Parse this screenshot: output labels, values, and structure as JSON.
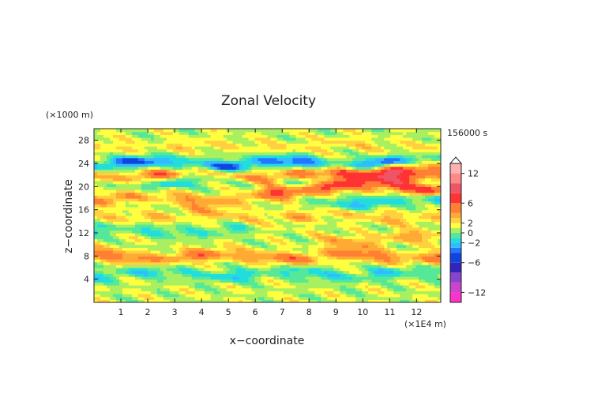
{
  "chart_data": {
    "type": "heatmap",
    "title": "Zonal Velocity",
    "xlabel": "x−coordinate",
    "ylabel": "z−coordinate",
    "x_unit": "(×1E4 m)",
    "y_unit": "(×1000 m)",
    "time_label": "156000 s",
    "xlim": [
      0,
      12.9
    ],
    "ylim": [
      0,
      30
    ],
    "x_ticks": [
      "1",
      "2",
      "3",
      "4",
      "5",
      "6",
      "7",
      "8",
      "9",
      "10",
      "11",
      "12"
    ],
    "y_ticks": [
      "4",
      "8",
      "12",
      "16",
      "20",
      "24",
      "28"
    ],
    "colorbar": {
      "tick_labels": [
        "12",
        "6",
        "2",
        "0",
        "−2",
        "−6",
        "−12"
      ],
      "tick_values": [
        12,
        6,
        2,
        0,
        -2,
        -6,
        -12
      ],
      "max": 14,
      "min": -14,
      "extend": "max"
    },
    "color_levels": [
      {
        "range": [
          -14,
          -12
        ],
        "color": "#ff33cc"
      },
      {
        "range": [
          -12,
          -10
        ],
        "color": "#cc44cc"
      },
      {
        "range": [
          -10,
          -8
        ],
        "color": "#8844cc"
      },
      {
        "range": [
          -8,
          -6
        ],
        "color": "#3322bb"
      },
      {
        "range": [
          -6,
          -4
        ],
        "color": "#1144dd"
      },
      {
        "range": [
          -4,
          -3
        ],
        "color": "#2277ff"
      },
      {
        "range": [
          -3,
          -2
        ],
        "color": "#33bbff"
      },
      {
        "range": [
          -2,
          -1
        ],
        "color": "#22dddd"
      },
      {
        "range": [
          -1,
          0
        ],
        "color": "#55e899"
      },
      {
        "range": [
          0,
          1
        ],
        "color": "#a8f060"
      },
      {
        "range": [
          1,
          2
        ],
        "color": "#ffff40"
      },
      {
        "range": [
          2,
          3
        ],
        "color": "#ffd040"
      },
      {
        "range": [
          3,
          4
        ],
        "color": "#ffaa33"
      },
      {
        "range": [
          4,
          6
        ],
        "color": "#ff8033"
      },
      {
        "range": [
          6,
          8
        ],
        "color": "#ff3333"
      },
      {
        "range": [
          8,
          10
        ],
        "color": "#ee5566"
      },
      {
        "range": [
          10,
          12
        ],
        "color": "#ff8888"
      },
      {
        "range": [
          12,
          14
        ],
        "color": "#ffb0b0"
      }
    ],
    "features": [
      {
        "x": [
          0.1,
          12.9
        ],
        "z": 24.0,
        "amp": -5.0
      },
      {
        "x": [
          0.1,
          12.9
        ],
        "z": 22.0,
        "amp": 4.5
      },
      {
        "x": [
          9.5,
          12.9
        ],
        "z": 23.0,
        "amp": 6.0
      },
      {
        "x": [
          7.0,
          12.5
        ],
        "z": 20.0,
        "amp": 6.0
      },
      {
        "x": [
          1.0,
          7.5
        ],
        "z": 21.0,
        "amp": -3.0
      },
      {
        "x": [
          8.0,
          12.9
        ],
        "z": 17.5,
        "amp": -3.0
      },
      {
        "x": [
          0.1,
          7.5
        ],
        "z": 18.0,
        "amp": 3.0
      },
      {
        "x": [
          0.1,
          12.9
        ],
        "z": 15.0,
        "amp": 2.0
      },
      {
        "x": [
          0.1,
          12.9
        ],
        "z": 8.0,
        "amp": 4.0
      },
      {
        "x": [
          0.1,
          12.9
        ],
        "z": 5.0,
        "amp": -2.5
      },
      {
        "x": [
          9.0,
          12.5
        ],
        "z": 11.0,
        "amp": 2.5
      },
      {
        "x": [
          0.1,
          12.9
        ],
        "z": 27.0,
        "amp": 1.2
      },
      {
        "x": [
          0.1,
          5.0
        ],
        "z": 12.5,
        "amp": -2.0
      }
    ]
  }
}
